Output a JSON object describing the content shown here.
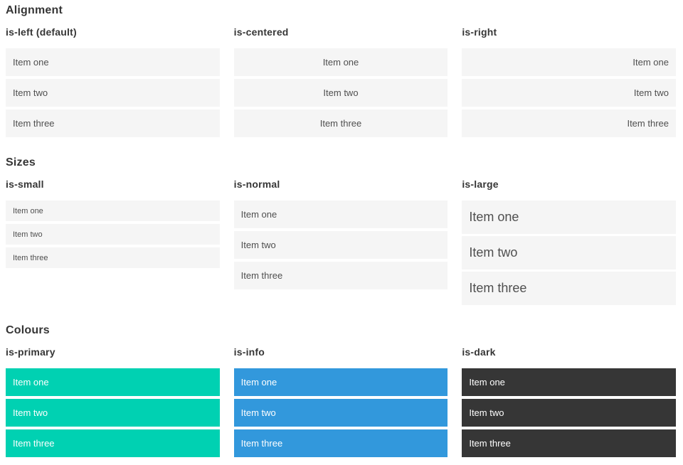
{
  "colors": {
    "page_bg": "#ffffff",
    "item_bg": "#f5f5f5",
    "item_text": "#4f4f4f",
    "heading_text": "#363636",
    "primary": "#00d1b2",
    "info": "#3298dc",
    "dark": "#363636",
    "on_color_text": "#ffffff"
  },
  "sections": [
    {
      "title": "Alignment",
      "groups": [
        {
          "label": "is-left (default)",
          "items": [
            "Item one",
            "Item two",
            "Item three"
          ]
        },
        {
          "label": "is-centered",
          "items": [
            "Item one",
            "Item two",
            "Item three"
          ]
        },
        {
          "label": "is-right",
          "items": [
            "Item one",
            "Item two",
            "Item three"
          ]
        }
      ]
    },
    {
      "title": "Sizes",
      "groups": [
        {
          "label": "is-small",
          "items": [
            "Item one",
            "Item two",
            "Item three"
          ]
        },
        {
          "label": "is-normal",
          "items": [
            "Item one",
            "Item two",
            "Item three"
          ]
        },
        {
          "label": "is-large",
          "items": [
            "Item one",
            "Item two",
            "Item three"
          ]
        }
      ]
    },
    {
      "title": "Colours",
      "groups": [
        {
          "label": "is-primary",
          "items": [
            "Item one",
            "Item two",
            "Item three"
          ]
        },
        {
          "label": "is-info",
          "items": [
            "Item one",
            "Item two",
            "Item three"
          ]
        },
        {
          "label": "is-dark",
          "items": [
            "Item one",
            "Item two",
            "Item three"
          ]
        }
      ]
    }
  ]
}
